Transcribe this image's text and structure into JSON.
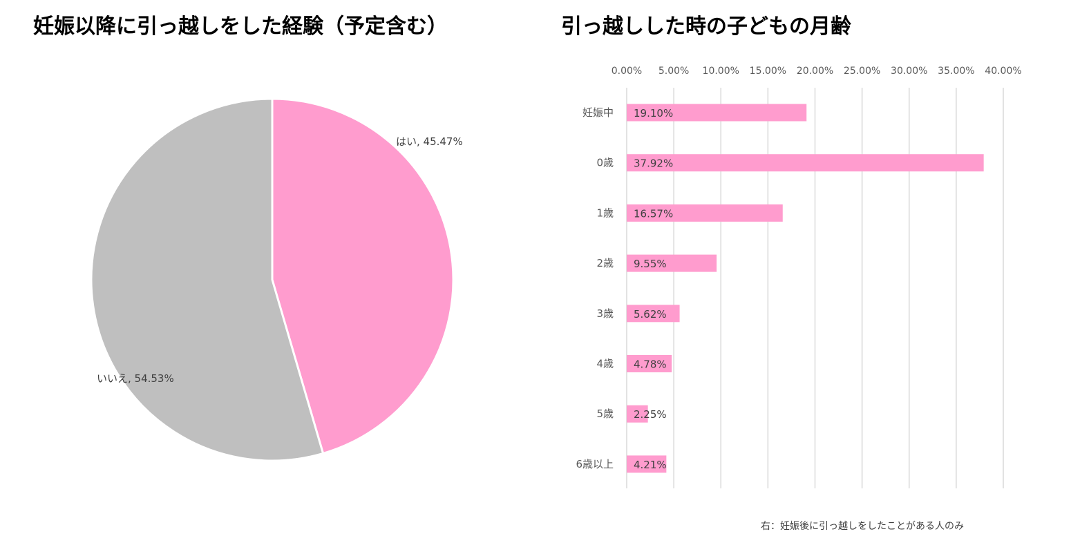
{
  "chart_data": [
    {
      "type": "pie",
      "title": "妊娠以降に引っ越しをした経験（予定含む）",
      "slices": [
        {
          "label": "はい",
          "value": 45.47,
          "display": "はい, 45.47%",
          "color": "#FF9CCE"
        },
        {
          "label": "いいえ",
          "value": 54.53,
          "display": "いいえ, 54.53%",
          "color": "#BFBFBF"
        }
      ]
    },
    {
      "type": "bar",
      "orientation": "horizontal",
      "title": "引っ越しした時の子どもの月齢",
      "categories": [
        "妊娠中",
        "0歳",
        "1歳",
        "2歳",
        "3歳",
        "4歳",
        "5歳",
        "6歳以上"
      ],
      "values": [
        19.1,
        37.92,
        16.57,
        9.55,
        5.62,
        4.78,
        2.25,
        4.21
      ],
      "data_labels": [
        "19.10%",
        "37.92%",
        "16.57%",
        "9.55%",
        "5.62%",
        "4.78%",
        "2.25%",
        "4.21%"
      ],
      "xticks": [
        "0.00%",
        "5.00%",
        "10.00%",
        "15.00%",
        "20.00%",
        "25.00%",
        "30.00%",
        "35.00%",
        "40.00%"
      ],
      "xlim": [
        0,
        40
      ],
      "grid": true,
      "bar_color": "#FF9CCE",
      "footnote": "右：妊娠後に引っ越しをしたことがある人のみ"
    }
  ]
}
